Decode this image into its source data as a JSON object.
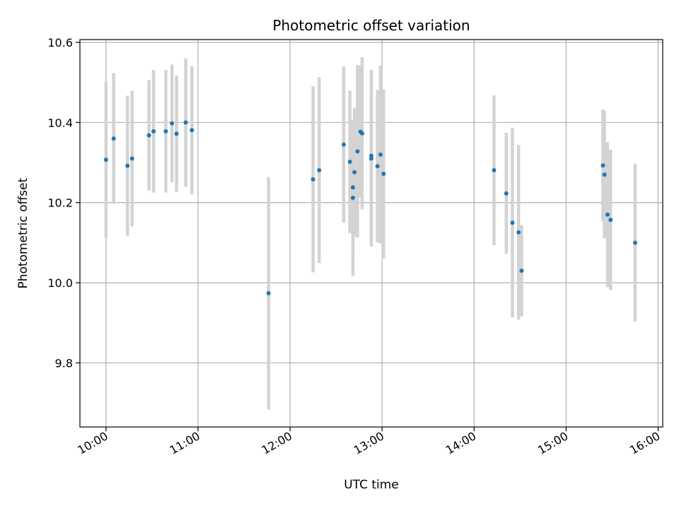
{
  "chart_data": {
    "type": "scatter",
    "title": "Photometric offset variation",
    "xlabel": "UTC time",
    "ylabel": "Photometric offset",
    "xlim": [
      "09:43",
      "16:03"
    ],
    "ylim": [
      9.64,
      10.607
    ],
    "x_ticks": [
      "10:00",
      "11:00",
      "12:00",
      "13:00",
      "14:00",
      "15:00",
      "16:00"
    ],
    "y_ticks": [
      "9.8",
      "10.0",
      "10.2",
      "10.4",
      "10.6"
    ],
    "grid": true,
    "colors": {
      "point": "#1f77b4",
      "errorbar": "#d3d3d3",
      "grid": "#b0b0b0"
    },
    "series": [
      {
        "points": [
          {
            "x": "10:00",
            "y": 10.307,
            "err": 0.195
          },
          {
            "x": "10:05",
            "y": 10.36,
            "err": 0.163
          },
          {
            "x": "10:14",
            "y": 10.292,
            "err": 0.175
          },
          {
            "x": "10:17",
            "y": 10.31,
            "err": 0.169
          },
          {
            "x": "10:28",
            "y": 10.368,
            "err": 0.138
          },
          {
            "x": "10:31",
            "y": 10.378,
            "err": 0.153
          },
          {
            "x": "10:39",
            "y": 10.378,
            "err": 0.153
          },
          {
            "x": "10:43",
            "y": 10.398,
            "err": 0.147
          },
          {
            "x": "10:46",
            "y": 10.372,
            "err": 0.145
          },
          {
            "x": "10:52",
            "y": 10.4,
            "err": 0.16
          },
          {
            "x": "10:56",
            "y": 10.381,
            "err": 0.16
          },
          {
            "x": "11:46",
            "y": 9.974,
            "err": 0.29
          },
          {
            "x": "12:15",
            "y": 10.258,
            "err": 0.232
          },
          {
            "x": "12:19",
            "y": 10.281,
            "err": 0.232
          },
          {
            "x": "12:35",
            "y": 10.345,
            "err": 0.195
          },
          {
            "x": "12:39",
            "y": 10.302,
            "err": 0.178
          },
          {
            "x": "12:41",
            "y": 10.212,
            "err": 0.195
          },
          {
            "x": "12:41",
            "y": 10.238,
            "err": 0.167
          },
          {
            "x": "12:42",
            "y": 10.276,
            "err": 0.16
          },
          {
            "x": "12:44",
            "y": 10.328,
            "err": 0.215
          },
          {
            "x": "12:46",
            "y": 10.377,
            "err": 0.165
          },
          {
            "x": "12:47",
            "y": 10.373,
            "err": 0.19
          },
          {
            "x": "12:53",
            "y": 10.317,
            "err": 0.215
          },
          {
            "x": "12:53",
            "y": 10.31,
            "err": 0.22
          },
          {
            "x": "12:57",
            "y": 10.291,
            "err": 0.19
          },
          {
            "x": "12:59",
            "y": 10.32,
            "err": 0.222
          },
          {
            "x": "13:01",
            "y": 10.272,
            "err": 0.211
          },
          {
            "x": "14:13",
            "y": 10.281,
            "err": 0.187
          },
          {
            "x": "14:21",
            "y": 10.223,
            "err": 0.151
          },
          {
            "x": "14:25",
            "y": 10.15,
            "err": 0.237
          },
          {
            "x": "14:29",
            "y": 10.126,
            "err": 0.218
          },
          {
            "x": "14:31",
            "y": 10.03,
            "err": 0.114
          },
          {
            "x": "15:24",
            "y": 10.293,
            "err": 0.14
          },
          {
            "x": "15:25",
            "y": 10.27,
            "err": 0.159
          },
          {
            "x": "15:27",
            "y": 10.17,
            "err": 0.181
          },
          {
            "x": "15:29",
            "y": 10.157,
            "err": 0.175
          },
          {
            "x": "15:45",
            "y": 10.1,
            "err": 0.197
          }
        ]
      }
    ]
  }
}
